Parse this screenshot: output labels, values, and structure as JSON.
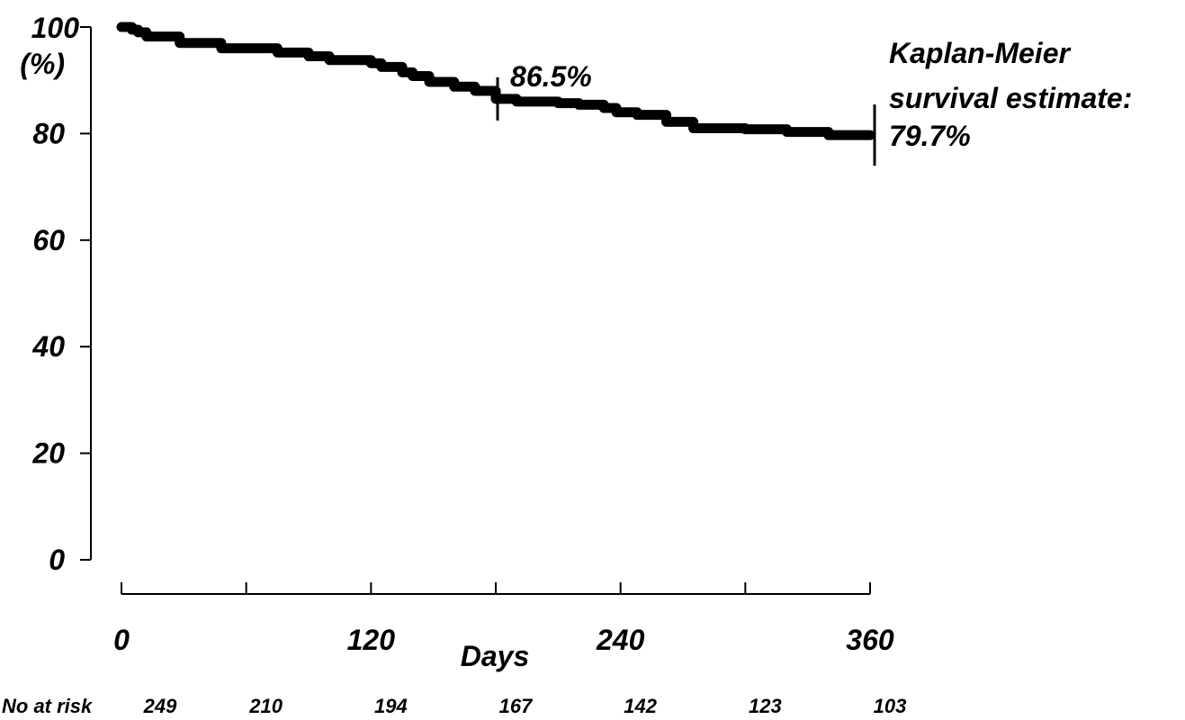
{
  "chart_data": {
    "type": "line",
    "xlabel": "Days",
    "ylabel": "(%)",
    "xlim": [
      0,
      360
    ],
    "ylim": [
      0,
      100
    ],
    "x_ticks": [
      "0",
      "120",
      "240",
      "360"
    ],
    "y_ticks": [
      "0",
      "20",
      "40",
      "60",
      "80",
      "100"
    ],
    "series": [
      {
        "x": [
          0,
          5,
          8,
          12,
          28,
          48,
          75,
          90,
          100,
          120,
          125,
          135,
          140,
          148,
          160,
          170,
          180,
          190,
          210,
          220,
          232,
          238,
          248,
          262,
          275,
          300,
          320,
          340,
          360
        ],
        "y": [
          100,
          99.5,
          99,
          98.2,
          97,
          96,
          95.2,
          94.5,
          93.8,
          93.2,
          92.5,
          91.5,
          90.8,
          89.7,
          88.8,
          88,
          86.5,
          86,
          85.7,
          85.4,
          84.8,
          84,
          83.5,
          82.2,
          81,
          80.8,
          80.3,
          79.7,
          79.7
        ]
      }
    ],
    "annotations": [
      {
        "text": "86.5%",
        "x": 180,
        "y": 86.5
      },
      {
        "text": "Kaplan-Meier survival estimate: 79.7%",
        "x": 360,
        "y": 79.7
      }
    ],
    "at_risk": {
      "label": "No at risk",
      "days": [
        0,
        60,
        120,
        180,
        240,
        300,
        360
      ],
      "values": [
        249,
        210,
        194,
        167,
        142,
        123,
        103
      ]
    }
  },
  "labels": {
    "y_top": "100",
    "y_unit": "(%)",
    "annot_mid": "86.5%",
    "km_line1": "Kaplan-Meier",
    "km_line2": "survival estimate:",
    "km_line3": "79.7%",
    "risk_label": "No at risk"
  }
}
